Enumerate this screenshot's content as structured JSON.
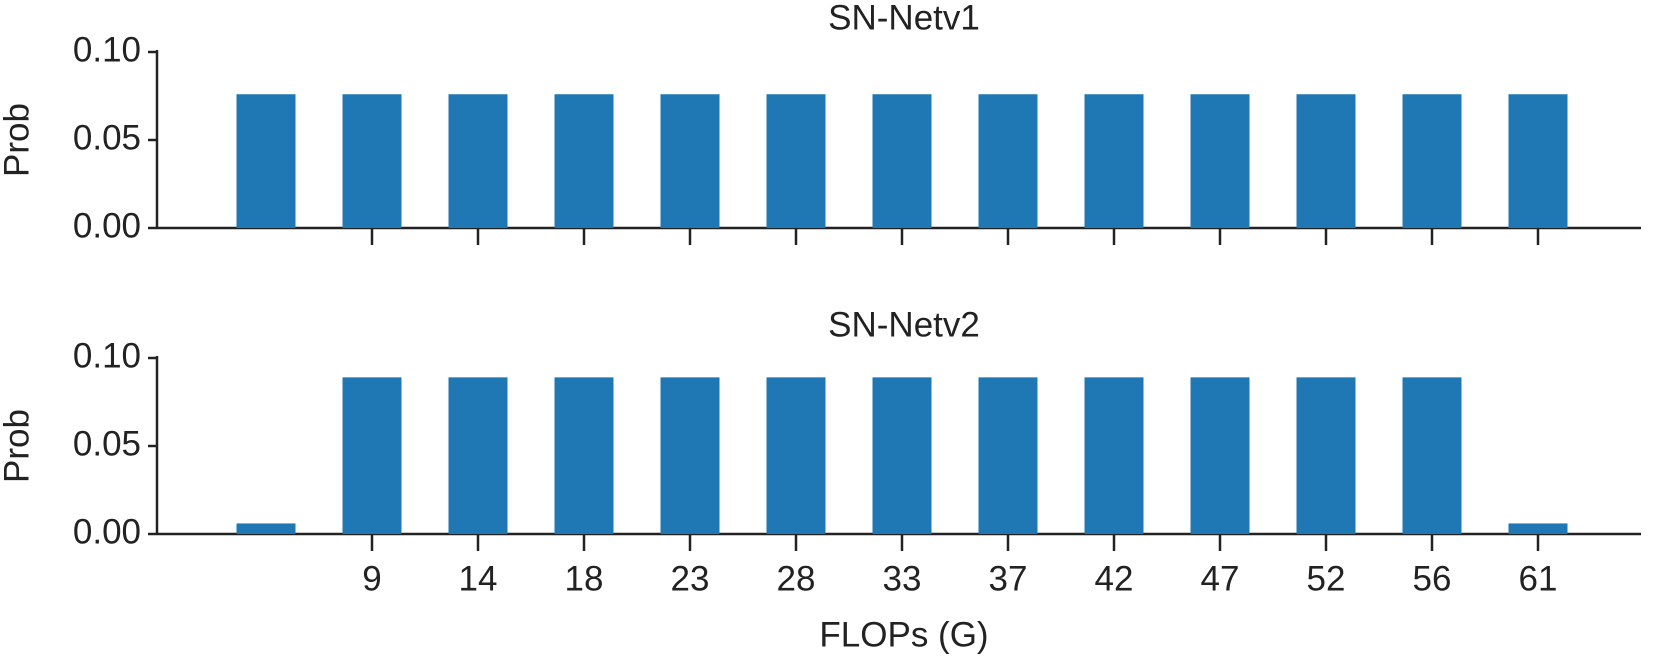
{
  "chart_data": [
    {
      "type": "bar",
      "title": "SN-Netv1",
      "ylabel": "Prob",
      "color": "#1f77b4",
      "values": [
        0.076,
        0.076,
        0.076,
        0.076,
        0.076,
        0.076,
        0.076,
        0.076,
        0.076,
        0.076,
        0.076,
        0.076,
        0.076
      ],
      "ylim": [
        0,
        0.1
      ],
      "yticks": [
        {
          "value": 0,
          "label": "0.00"
        },
        {
          "value": 0.05,
          "label": "0.05"
        },
        {
          "value": 0.1,
          "label": "0.10"
        }
      ]
    },
    {
      "type": "bar",
      "title": "SN-Netv2",
      "ylabel": "Prob",
      "xlabel": "FLOPs (G)",
      "color": "#1f77b4",
      "categories": [
        null,
        "9",
        "14",
        "18",
        "23",
        "28",
        "33",
        "37",
        "42",
        "47",
        "52",
        "56",
        "61"
      ],
      "values": [
        0.006,
        0.089,
        0.089,
        0.089,
        0.089,
        0.089,
        0.089,
        0.089,
        0.089,
        0.089,
        0.089,
        0.089,
        0.006
      ],
      "ylim": [
        0,
        0.1
      ],
      "yticks": [
        {
          "value": 0,
          "label": "0.00"
        },
        {
          "value": 0.05,
          "label": "0.05"
        },
        {
          "value": 0.1,
          "label": "0.10"
        }
      ]
    }
  ]
}
